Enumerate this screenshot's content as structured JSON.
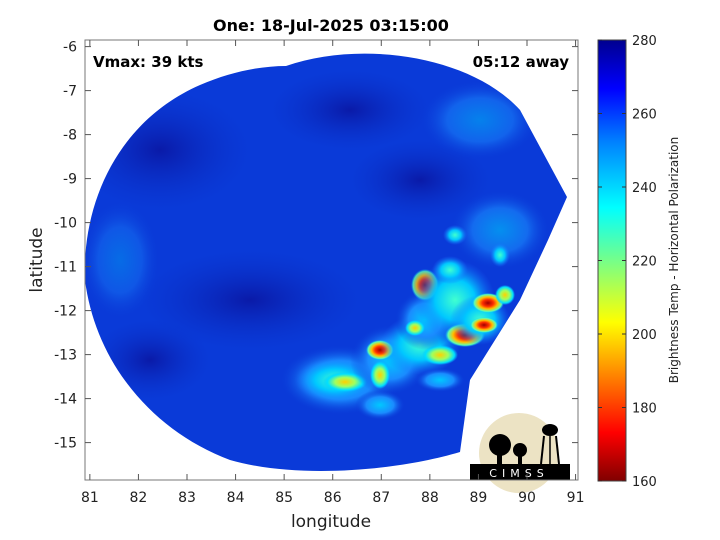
{
  "title": "One: 18-Jul-2025 03:15:00",
  "vmax_text": "Vmax: 39 kts",
  "time_away_text": "05:12 away",
  "xlabel": "longitude",
  "ylabel": "latitude",
  "x_ticks": [
    "81",
    "82",
    "83",
    "84",
    "85",
    "86",
    "87",
    "88",
    "89",
    "90",
    "91"
  ],
  "y_ticks": [
    "-6",
    "-7",
    "-8",
    "-9",
    "-10",
    "-11",
    "-12",
    "-13",
    "-14",
    "-15"
  ],
  "x_range": [
    80.9,
    91.05
  ],
  "y_range": [
    -15.85,
    -5.85
  ],
  "colorbar": {
    "label": "Brightness Temp - Horizontal Polarization",
    "ticks": [
      "280",
      "260",
      "240",
      "220",
      "200",
      "180",
      "160"
    ],
    "range": [
      160,
      280
    ],
    "colormap": "jet"
  },
  "logo_text": "CIMSS",
  "colors": {
    "background_field": "#0a3ad8",
    "cold_core": "#cc0000",
    "outside": "#ffffff"
  }
}
